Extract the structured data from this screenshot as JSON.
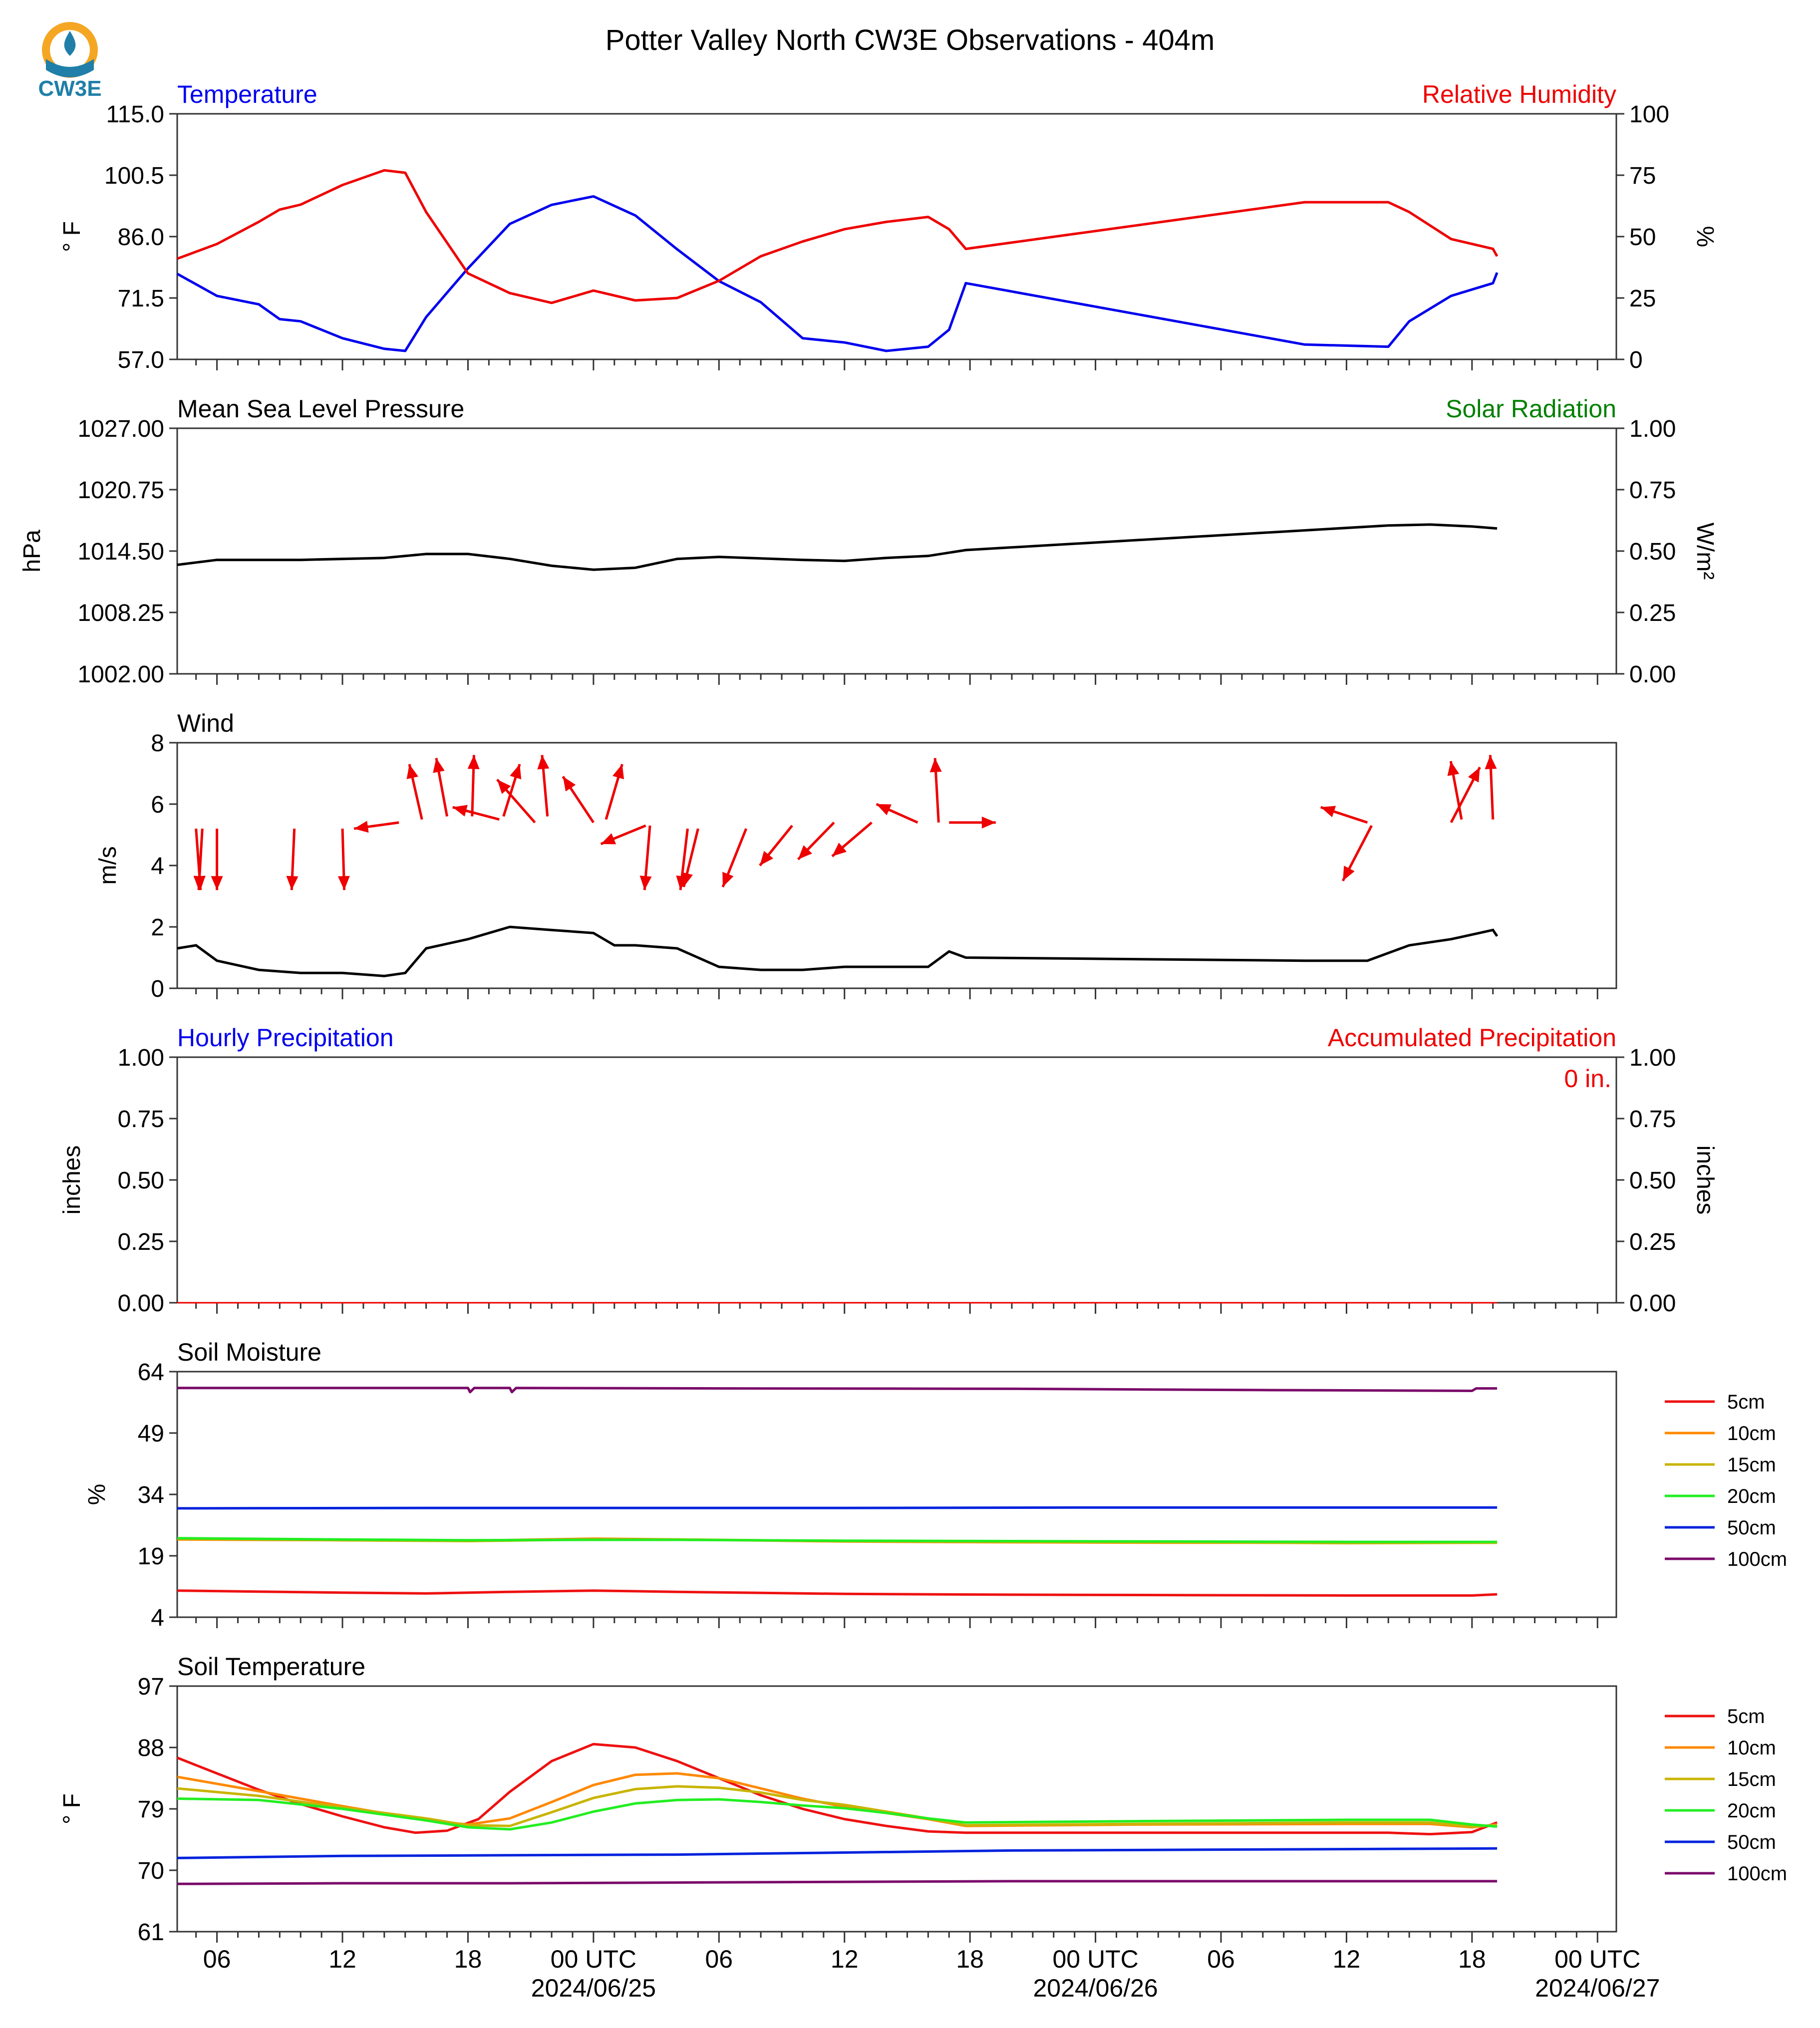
{
  "title": "Potter Valley North CW3E Observations - 404m",
  "logo": {
    "text": "CW3E",
    "colors": {
      "sun": "#f5a623",
      "wave": "#1f7fa8",
      "drop": "#1f7fa8"
    }
  },
  "colors": {
    "temperature": "#0000ee",
    "humidity": "#ee0000",
    "pressure": "#000000",
    "solar": "#008000",
    "wind": "#000000",
    "wind_arrow": "#ee0000",
    "accum": "#ee0000",
    "hourly": "#0000ee"
  },
  "x_axis": {
    "tick_labels": [
      {
        "hour": 6,
        "label": "06"
      },
      {
        "hour": 12,
        "label": "12"
      },
      {
        "hour": 18,
        "label": "18"
      },
      {
        "hour": 24,
        "label": "00 UTC",
        "sublabel": "2024/06/25"
      },
      {
        "hour": 30,
        "label": "06"
      },
      {
        "hour": 36,
        "label": "12"
      },
      {
        "hour": 42,
        "label": "18"
      },
      {
        "hour": 48,
        "label": "00 UTC",
        "sublabel": "2024/06/26"
      },
      {
        "hour": 54,
        "label": "06"
      },
      {
        "hour": 60,
        "label": "12"
      },
      {
        "hour": 66,
        "label": "18"
      },
      {
        "hour": 72,
        "label": "00 UTC",
        "sublabel": "2024/06/27"
      }
    ],
    "range_hours": [
      4.1,
      72.9
    ]
  },
  "panels": {
    "temperature": {
      "left_title": "Temperature",
      "right_title": "Relative Humidity",
      "left_ylabel": "° F",
      "right_ylabel": "%",
      "left_ticks": [
        "115.0",
        "100.5",
        "86.0",
        "71.5",
        "57.0"
      ],
      "right_ticks": [
        "100",
        "75",
        "50",
        "25",
        "0"
      ]
    },
    "pressure": {
      "left_title": "Mean Sea Level Pressure",
      "right_title": "Solar Radiation",
      "left_ylabel": "hPa",
      "right_ylabel": "W/m²",
      "left_ticks": [
        "1027.00",
        "1020.75",
        "1014.50",
        "1008.25",
        "1002.00"
      ],
      "right_ticks": [
        "1.00",
        "0.75",
        "0.50",
        "0.25",
        "0.00"
      ]
    },
    "wind": {
      "left_title": "Wind",
      "left_ylabel": "m/s",
      "left_ticks": [
        "8",
        "6",
        "4",
        "2",
        "0"
      ]
    },
    "precip": {
      "left_title": "Hourly Precipitation",
      "right_title": "Accumulated Precipitation",
      "left_ylabel": "inches",
      "right_ylabel": "inches",
      "left_ticks": [
        "1.00",
        "0.75",
        "0.50",
        "0.25",
        "0.00"
      ],
      "right_ticks": [
        "1.00",
        "0.75",
        "0.50",
        "0.25",
        "0.00"
      ],
      "accum_label": "0 in."
    },
    "soil_moisture": {
      "left_title": "Soil Moisture",
      "left_ylabel": "%",
      "left_ticks": [
        "64",
        "49",
        "34",
        "19",
        "4"
      ]
    },
    "soil_temp": {
      "left_title": "Soil Temperature",
      "left_ylabel": "° F",
      "left_ticks": [
        "97",
        "88",
        "79",
        "70",
        "61"
      ]
    }
  },
  "chart_data": [
    {
      "type": "line",
      "title": "Temperature / Relative Humidity",
      "ylim": [
        57.0,
        115.0
      ],
      "ylim_right": [
        0,
        100
      ],
      "series": [
        {
          "name": "Temperature",
          "unit": "°F",
          "x": [
            4.1,
            6,
            8,
            9,
            10,
            12,
            14,
            15,
            16,
            18,
            20,
            22,
            24,
            26,
            28,
            30,
            32,
            34,
            36,
            38,
            40,
            41,
            41.8,
            58,
            62,
            63,
            65,
            67,
            67.2
          ],
          "y": [
            77.2,
            72.0,
            70.0,
            66.5,
            66.0,
            62.0,
            59.5,
            59.0,
            67.0,
            78.5,
            89.0,
            93.5,
            95.5,
            91.0,
            83.0,
            75.5,
            70.5,
            62.0,
            61.0,
            59.0,
            60.0,
            64.0,
            75.0,
            60.5,
            60.0,
            66.0,
            72.0,
            75.0,
            77.5
          ]
        },
        {
          "name": "Relative Humidity",
          "unit": "%",
          "x": [
            4.1,
            6,
            8,
            9,
            10,
            12,
            14,
            15,
            16,
            18,
            20,
            22,
            24,
            26,
            28,
            30,
            32,
            34,
            36,
            38,
            40,
            41,
            41.8,
            58,
            62,
            63,
            65,
            67,
            67.2
          ],
          "y": [
            41,
            47,
            56,
            61,
            63,
            71,
            77,
            76,
            60,
            35,
            27,
            23,
            28,
            24,
            25,
            32,
            42,
            48,
            53,
            56,
            58,
            53,
            45,
            64,
            64,
            60,
            49,
            45,
            42
          ]
        }
      ]
    },
    {
      "type": "line",
      "title": "Mean Sea Level Pressure",
      "ylim": [
        1002.0,
        1027.0
      ],
      "series": [
        {
          "name": "MSLP",
          "unit": "hPa",
          "x": [
            4.1,
            6,
            10,
            14,
            16,
            18,
            20,
            22,
            24,
            26,
            28,
            30,
            34,
            36,
            38,
            40,
            41.8,
            62,
            64,
            66,
            67.2
          ],
          "y": [
            1013.1,
            1013.6,
            1013.6,
            1013.8,
            1014.2,
            1014.2,
            1013.7,
            1013.0,
            1012.6,
            1012.8,
            1013.7,
            1013.9,
            1013.6,
            1013.5,
            1013.8,
            1014.0,
            1014.6,
            1017.1,
            1017.2,
            1017.0,
            1016.8
          ]
        }
      ]
    },
    {
      "type": "line",
      "title": "Wind",
      "ylim": [
        0,
        8
      ],
      "series": [
        {
          "name": "Wind speed",
          "unit": "m/s",
          "x": [
            4.1,
            5,
            6,
            8,
            10,
            12,
            14,
            15,
            16,
            18,
            20,
            22,
            24,
            25,
            26,
            28,
            30,
            32,
            34,
            36,
            38,
            40,
            41,
            41.8,
            58,
            59,
            61,
            63,
            65,
            67,
            67.2
          ],
          "y": [
            1.3,
            1.4,
            0.9,
            0.6,
            0.5,
            0.5,
            0.4,
            0.5,
            1.3,
            1.6,
            2.0,
            1.9,
            1.8,
            1.4,
            1.4,
            1.3,
            0.7,
            0.6,
            0.6,
            0.7,
            0.7,
            0.7,
            1.2,
            1.0,
            0.9,
            0.9,
            0.9,
            1.4,
            1.6,
            1.9,
            1.7
          ]
        }
      ],
      "arrows": [
        {
          "hour": 5.0,
          "y": 5.2,
          "dx": 0.25,
          "dy": -2.0
        },
        {
          "hour": 5.3,
          "y": 5.2,
          "dx": -0.2,
          "dy": -2.0
        },
        {
          "hour": 6.0,
          "y": 5.2,
          "dx": 0.0,
          "dy": -2.0
        },
        {
          "hour": 9.7,
          "y": 5.2,
          "dx": -0.15,
          "dy": -2.0
        },
        {
          "hour": 12.0,
          "y": 5.2,
          "dx": 0.1,
          "dy": -2.0
        },
        {
          "hour": 14.7,
          "y": 5.4,
          "dx": -2.5,
          "dy": -0.2
        },
        {
          "hour": 15.8,
          "y": 5.5,
          "dx": -0.7,
          "dy": 1.8
        },
        {
          "hour": 17.0,
          "y": 5.6,
          "dx": -0.6,
          "dy": 1.9
        },
        {
          "hour": 18.2,
          "y": 5.6,
          "dx": 0.1,
          "dy": 2.0
        },
        {
          "hour": 19.5,
          "y": 5.5,
          "dx": -2.6,
          "dy": 0.4
        },
        {
          "hour": 19.7,
          "y": 5.6,
          "dx": 0.9,
          "dy": 1.7
        },
        {
          "hour": 21.2,
          "y": 5.4,
          "dx": -2.1,
          "dy": 1.4
        },
        {
          "hour": 21.8,
          "y": 5.6,
          "dx": -0.3,
          "dy": 2.0
        },
        {
          "hour": 24.0,
          "y": 5.4,
          "dx": -1.7,
          "dy": 1.5
        },
        {
          "hour": 24.6,
          "y": 5.5,
          "dx": 0.9,
          "dy": 1.8
        },
        {
          "hour": 26.5,
          "y": 5.3,
          "dx": -2.5,
          "dy": -0.6
        },
        {
          "hour": 26.7,
          "y": 5.3,
          "dx": -0.3,
          "dy": -2.1
        },
        {
          "hour": 28.5,
          "y": 5.2,
          "dx": -0.4,
          "dy": -2.0
        },
        {
          "hour": 29.0,
          "y": 5.2,
          "dx": -0.8,
          "dy": -1.9
        },
        {
          "hour": 31.3,
          "y": 5.2,
          "dx": -1.3,
          "dy": -1.9
        },
        {
          "hour": 33.5,
          "y": 5.3,
          "dx": -1.8,
          "dy": -1.3
        },
        {
          "hour": 35.5,
          "y": 5.4,
          "dx": -2.0,
          "dy": -1.2
        },
        {
          "hour": 37.3,
          "y": 5.4,
          "dx": -2.2,
          "dy": -1.1
        },
        {
          "hour": 39.5,
          "y": 5.4,
          "dx": -2.3,
          "dy": 0.6
        },
        {
          "hour": 40.5,
          "y": 5.4,
          "dx": -0.2,
          "dy": 2.1
        },
        {
          "hour": 41.0,
          "y": 5.4,
          "dx": 2.6,
          "dy": 0.0
        },
        {
          "hour": 61.0,
          "y": 5.4,
          "dx": -2.6,
          "dy": 0.5
        },
        {
          "hour": 61.2,
          "y": 5.3,
          "dx": -1.6,
          "dy": -1.8
        },
        {
          "hour": 65.0,
          "y": 5.4,
          "dx": 1.6,
          "dy": 1.8
        },
        {
          "hour": 65.5,
          "y": 5.5,
          "dx": -0.6,
          "dy": 1.9
        },
        {
          "hour": 67.0,
          "y": 5.5,
          "dx": -0.15,
          "dy": 2.1
        }
      ]
    },
    {
      "type": "line",
      "title": "Hourly Precipitation / Accumulated Precipitation",
      "ylim": [
        0.0,
        1.0
      ],
      "ylim_right": [
        0.0,
        1.0
      ],
      "series": [
        {
          "name": "Hourly Precipitation",
          "unit": "inches",
          "x": [
            4.1,
            67.2
          ],
          "y": [
            0,
            0
          ]
        },
        {
          "name": "Accumulated Precipitation",
          "unit": "inches",
          "x": [
            4.1,
            67.2
          ],
          "y": [
            0,
            0
          ]
        }
      ]
    },
    {
      "type": "line",
      "title": "Soil Moisture",
      "ylim": [
        4,
        64
      ],
      "legend": "right",
      "series": [
        {
          "name": "5cm",
          "color": "#ee1111",
          "x": [
            4.1,
            12,
            16,
            20,
            24,
            28,
            36,
            44,
            52,
            60,
            66,
            67.2
          ],
          "y": [
            10.5,
            10.0,
            9.8,
            10.2,
            10.5,
            10.2,
            9.7,
            9.5,
            9.4,
            9.3,
            9.3,
            9.6
          ]
        },
        {
          "name": "10cm",
          "color": "#ff8800",
          "x": [
            4.1,
            12,
            18,
            24,
            28,
            36,
            44,
            52,
            60,
            67.2
          ],
          "y": [
            23.0,
            22.8,
            22.7,
            23.2,
            23.0,
            22.5,
            22.3,
            22.2,
            22.2,
            22.2
          ]
        },
        {
          "name": "15cm",
          "color": "#c8b400",
          "x": [
            4.1,
            12,
            18,
            24,
            28,
            36,
            44,
            52,
            60,
            67.2
          ],
          "y": [
            23.2,
            22.8,
            22.6,
            23.0,
            23.0,
            22.6,
            22.4,
            22.3,
            22.1,
            22.2
          ]
        },
        {
          "name": "20cm",
          "color": "#22ee22",
          "x": [
            4.1,
            12,
            18,
            24,
            28,
            36,
            44,
            52,
            60,
            67.2
          ],
          "y": [
            23.3,
            23.0,
            22.8,
            22.9,
            22.9,
            22.7,
            22.6,
            22.5,
            22.4,
            22.4
          ]
        },
        {
          "name": "50cm",
          "color": "#0022dd",
          "x": [
            4.1,
            16,
            24,
            36,
            48,
            60,
            67.2
          ],
          "y": [
            30.6,
            30.7,
            30.7,
            30.7,
            30.8,
            30.8,
            30.8
          ]
        },
        {
          "name": "100cm",
          "color": "#7a0a6a",
          "x": [
            4.1,
            14,
            18,
            18.1,
            18.3,
            20,
            20.1,
            20.3,
            30,
            44,
            56,
            66,
            66.2,
            67.2
          ],
          "y": [
            60.0,
            60.0,
            60.0,
            59.0,
            60.0,
            60.0,
            59.0,
            60.0,
            59.9,
            59.8,
            59.5,
            59.3,
            59.9,
            59.9
          ]
        }
      ]
    },
    {
      "type": "line",
      "title": "Soil Temperature",
      "ylim": [
        61,
        97
      ],
      "legend": "right",
      "series": [
        {
          "name": "5cm",
          "color": "#ee1111",
          "x": [
            4.1,
            6,
            8,
            10,
            12,
            14,
            15.5,
            17,
            18.5,
            20,
            22,
            24,
            26,
            28,
            30,
            32,
            34,
            36,
            38,
            40,
            41.8,
            50,
            60,
            62,
            64,
            66,
            67.2
          ],
          "y": [
            86.5,
            84.2,
            81.8,
            79.7,
            77.9,
            76.3,
            75.5,
            75.8,
            77.5,
            81.5,
            86.0,
            88.5,
            88.0,
            86.0,
            83.5,
            81.0,
            79.0,
            77.5,
            76.5,
            75.7,
            75.5,
            75.5,
            75.5,
            75.5,
            75.3,
            75.6,
            77.0
          ]
        },
        {
          "name": "10cm",
          "color": "#ff8800",
          "x": [
            4.1,
            8,
            12,
            16,
            18,
            20,
            22,
            24,
            26,
            28,
            30,
            32,
            34,
            36,
            38,
            40,
            41.8,
            50,
            60,
            64,
            66,
            67.2
          ],
          "y": [
            83.7,
            81.6,
            79.4,
            77.3,
            76.7,
            77.6,
            80.0,
            82.5,
            84.0,
            84.2,
            83.5,
            82.0,
            80.5,
            79.3,
            78.4,
            77.5,
            76.5,
            76.7,
            76.8,
            76.8,
            76.3,
            76.7
          ]
        },
        {
          "name": "15cm",
          "color": "#c8b400",
          "x": [
            4.1,
            8,
            12,
            16,
            18,
            20,
            22,
            24,
            26,
            28,
            30,
            32,
            34,
            36,
            38,
            40,
            41.8,
            50,
            60,
            64,
            66,
            67.2
          ],
          "y": [
            82.0,
            80.9,
            79.2,
            77.6,
            76.6,
            76.5,
            78.5,
            80.6,
            81.9,
            82.3,
            82.1,
            81.4,
            80.3,
            79.6,
            78.6,
            77.6,
            76.6,
            76.8,
            77.0,
            77.0,
            76.4,
            76.6
          ]
        },
        {
          "name": "20cm",
          "color": "#22ee22",
          "x": [
            4.1,
            8,
            12,
            16,
            18,
            20,
            22,
            24,
            26,
            28,
            30,
            32,
            34,
            36,
            38,
            40,
            41.8,
            50,
            60,
            64,
            66,
            67.2
          ],
          "y": [
            80.5,
            80.3,
            79.0,
            77.3,
            76.3,
            76.0,
            77.0,
            78.6,
            79.8,
            80.3,
            80.4,
            80.0,
            79.5,
            79.1,
            78.4,
            77.6,
            77.0,
            77.2,
            77.4,
            77.4,
            76.7,
            76.4
          ]
        },
        {
          "name": "50cm",
          "color": "#0022dd",
          "x": [
            4.1,
            12,
            20,
            28,
            36,
            44,
            52,
            60,
            67.2
          ],
          "y": [
            71.8,
            72.1,
            72.2,
            72.3,
            72.6,
            72.9,
            73.0,
            73.1,
            73.2
          ]
        },
        {
          "name": "100cm",
          "color": "#7a0a6a",
          "x": [
            4.1,
            12,
            20,
            28,
            36,
            44,
            52,
            60,
            67.2
          ],
          "y": [
            68.0,
            68.1,
            68.1,
            68.2,
            68.3,
            68.4,
            68.4,
            68.4,
            68.4
          ]
        }
      ]
    }
  ]
}
